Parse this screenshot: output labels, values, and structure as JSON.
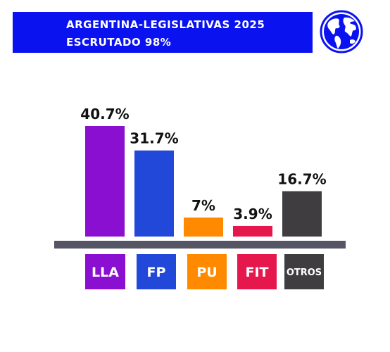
{
  "header": {
    "title": "ARGENTINA-LEGISLATIVAS 2025",
    "subtitle": "ESCRUTADO 98%"
  },
  "icons": {
    "globe": "globe-icon"
  },
  "colors": {
    "header_bg": "#0a12f0",
    "axis": "#555566"
  },
  "chart_data": {
    "type": "bar",
    "categories": [
      "LLA",
      "FP",
      "PU",
      "FIT",
      "OTROS"
    ],
    "values": [
      40.7,
      31.7,
      7,
      3.9,
      16.7
    ],
    "value_labels": [
      "40.7%",
      "31.7%",
      "7%",
      "3.9%",
      "16.7%"
    ],
    "colors": [
      "#8b0fd0",
      "#2148d8",
      "#ff8a00",
      "#e5174c",
      "#3f3d40"
    ],
    "title": "ARGENTINA-LEGISLATIVAS 2025",
    "subtitle": "ESCRUTADO 98%",
    "xlabel": "",
    "ylabel": "",
    "grid": false,
    "legend": "none"
  }
}
